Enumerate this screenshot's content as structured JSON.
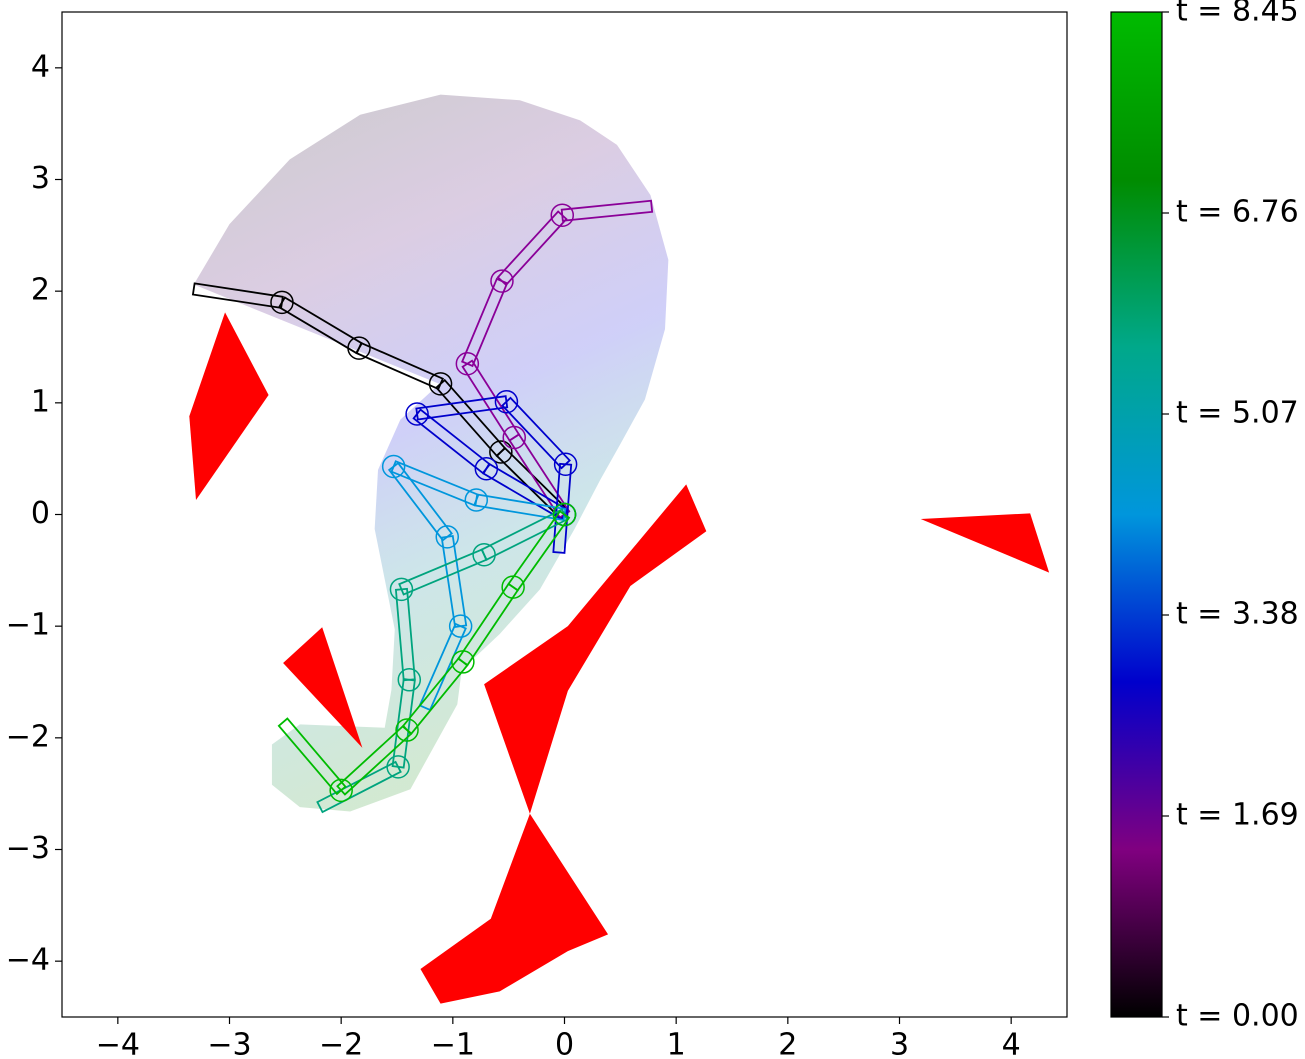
{
  "chart_data": {
    "type": "workspace",
    "xlim": [
      -4.5,
      4.5
    ],
    "ylim": [
      -4.5,
      4.5
    ],
    "xticks": [
      {
        "value": -4,
        "label": "−4"
      },
      {
        "value": -3,
        "label": "−3"
      },
      {
        "value": -2,
        "label": "−2"
      },
      {
        "value": -1,
        "label": "−1"
      },
      0,
      1,
      2,
      3,
      4
    ],
    "yticks": [
      {
        "value": -4,
        "label": "−4"
      },
      {
        "value": -3,
        "label": "−3"
      },
      {
        "value": -2,
        "label": "−2"
      },
      {
        "value": -1,
        "label": "−1"
      },
      0,
      1,
      2,
      3,
      4
    ],
    "obstacle_color": "#ff0000",
    "obstacles": [
      {
        "x": [
          -3.04,
          -2.65,
          -3.3,
          -3.36
        ],
        "y": [
          1.81,
          1.07,
          0.13,
          0.88
        ]
      },
      {
        "x": [
          3.19,
          4.17,
          4.34
        ],
        "y": [
          -0.04,
          0.01,
          -0.52
        ]
      },
      {
        "x": [
          -2.17,
          -1.81,
          -2.52
        ],
        "y": [
          -1.01,
          -2.09,
          -1.33
        ]
      },
      {
        "x": [
          1.09,
          1.27,
          0.59,
          0.03,
          -0.31,
          -0.72,
          0.03
        ],
        "y": [
          0.27,
          -0.15,
          -0.64,
          -1.58,
          -2.68,
          -1.52,
          -1.0
        ]
      },
      {
        "x": [
          -0.31,
          0.39,
          0.03,
          -0.58,
          -1.11,
          -1.29,
          -0.66
        ],
        "y": [
          -2.68,
          -3.76,
          -3.91,
          -4.27,
          -4.38,
          -4.07,
          -3.62
        ]
      }
    ],
    "swept_region": {
      "x": [
        -3.32,
        -3.0,
        -2.46,
        -1.83,
        -1.11,
        -0.4,
        0.14,
        0.47,
        0.77,
        0.93,
        0.9,
        0.72,
        0.5,
        0.32,
        0.09,
        -0.22,
        -0.58,
        -0.92,
        -0.96,
        -1.38,
        -1.92,
        -2.37,
        -2.62,
        -2.62,
        -2.37,
        -1.61,
        -1.55,
        -1.52,
        -1.61,
        -1.7,
        -1.67,
        -1.47,
        -1.12
      ],
      "y": [
        2.06,
        2.6,
        3.18,
        3.58,
        3.76,
        3.71,
        3.53,
        3.31,
        2.86,
        2.28,
        1.66,
        1.03,
        0.63,
        0.31,
        -0.13,
        -0.67,
        -1.07,
        -1.39,
        -1.7,
        -2.46,
        -2.66,
        -2.62,
        -2.42,
        -2.06,
        -1.88,
        -1.91,
        -1.57,
        -1.03,
        -0.58,
        -0.13,
        0.4,
        0.85,
        1.17
      ]
    },
    "configurations": [
      {
        "color": "#000000",
        "x": [
          0,
          -0.57,
          -1.11,
          -1.84,
          -2.53,
          -3.32
        ],
        "y": [
          0,
          0.56,
          1.17,
          1.49,
          1.9,
          2.02
        ]
      },
      {
        "color": "#8a0098",
        "x": [
          0,
          -0.45,
          -0.87,
          -0.56,
          -0.02,
          0.78
        ],
        "y": [
          0,
          0.69,
          1.35,
          2.09,
          2.68,
          2.76
        ]
      },
      {
        "color": "#0000cc",
        "x": [
          0,
          -0.7,
          -1.32,
          -0.52,
          0.01,
          -0.05
        ],
        "y": [
          0,
          0.41,
          0.9,
          1.01,
          0.45,
          -0.34
        ]
      },
      {
        "color": "#0096dc",
        "x": [
          0,
          -0.79,
          -1.53,
          -1.05,
          -0.93,
          -1.25
        ],
        "y": [
          0,
          0.13,
          0.43,
          -0.2,
          -1.0,
          -1.73
        ]
      },
      {
        "color": "#00a47e",
        "x": [
          0,
          -0.72,
          -1.46,
          -1.39,
          -1.49,
          -2.19
        ],
        "y": [
          0,
          -0.36,
          -0.67,
          -1.48,
          -2.26,
          -2.62
        ]
      },
      {
        "color": "#00bb00",
        "x": [
          0,
          -0.46,
          -0.91,
          -1.41,
          -2.0,
          -2.52
        ],
        "y": [
          0,
          -0.65,
          -1.32,
          -1.93,
          -2.47,
          -1.86
        ]
      }
    ],
    "colorbar": {
      "lim": [
        0,
        8.45
      ],
      "colors": [
        "#000000",
        "#800080",
        "#0000cc",
        "#0096dc",
        "#00a88a",
        "#008c00",
        "#00bb00"
      ],
      "ticks": [
        {
          "value": 0,
          "label": "t = 0.00"
        },
        {
          "value": 1.69,
          "label": "t = 1.69"
        },
        {
          "value": 3.38,
          "label": "t = 3.38"
        },
        {
          "value": 5.07,
          "label": "t = 5.07"
        },
        {
          "value": 6.76,
          "label": "t = 6.76"
        },
        {
          "value": 8.45,
          "label": "t = 8.45"
        }
      ]
    }
  }
}
